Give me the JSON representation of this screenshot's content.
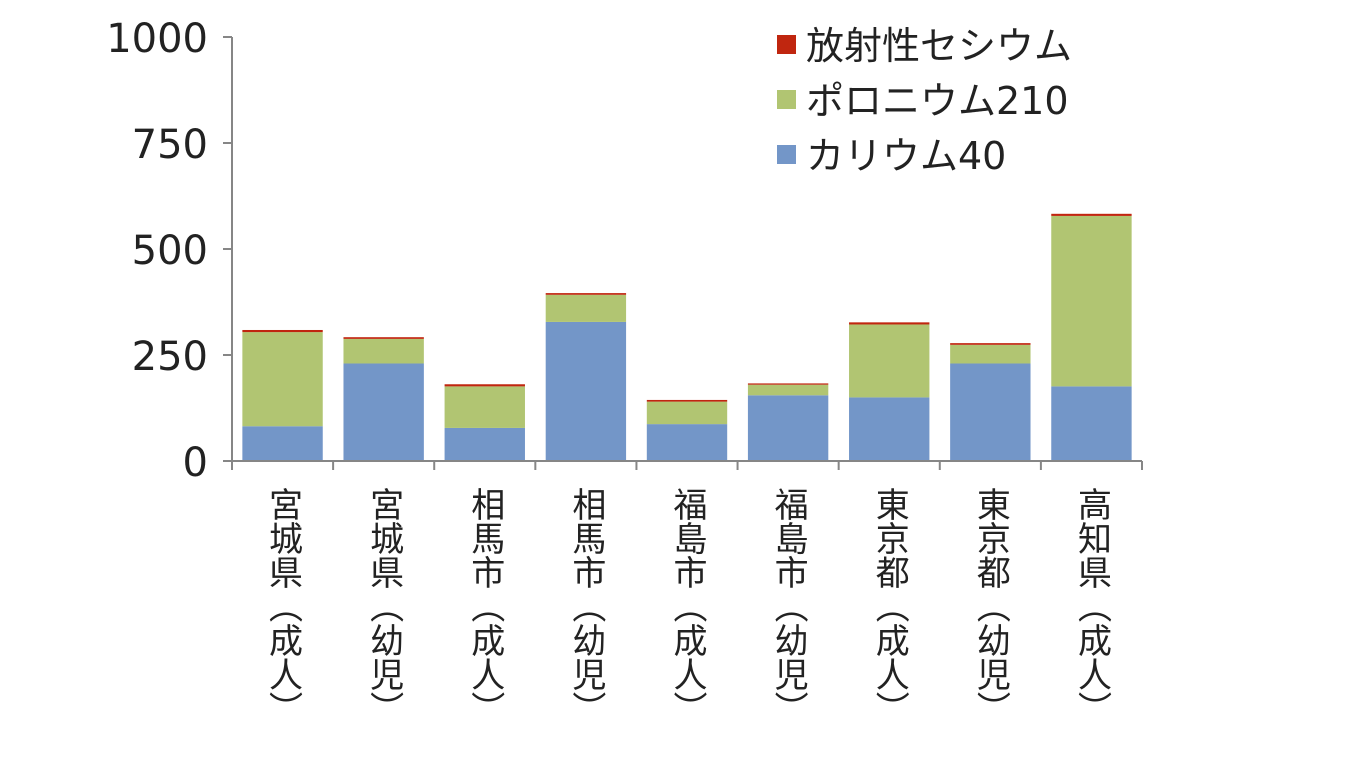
{
  "chart_data": {
    "type": "bar",
    "stacked": true,
    "title": "",
    "xlabel": "",
    "ylabel": "",
    "ylim": [
      0,
      1000
    ],
    "yticks": [
      0,
      250,
      500,
      750,
      1000
    ],
    "grid": false,
    "legend_position": "top-right",
    "categories": [
      "宮城県（成人）",
      "宮城県（幼児）",
      "相馬市（成人）",
      "相馬市（幼児）",
      "福島市（成人）",
      "福島市（幼児）",
      "東京都（成人）",
      "東京都（幼児）",
      "高知県（成人）"
    ],
    "series": [
      {
        "name": "カリウム40",
        "color": "#7396c8",
        "values": [
          82,
          230,
          78,
          328,
          87,
          155,
          150,
          230,
          176
        ]
      },
      {
        "name": "ポロニウム210",
        "color": "#b1c572",
        "values": [
          222,
          58,
          98,
          64,
          53,
          25,
          172,
          44,
          402
        ]
      },
      {
        "name": "放射性セシウム",
        "color": "#c0260f",
        "values": [
          5,
          4,
          5,
          4,
          4,
          3,
          5,
          4,
          5
        ]
      }
    ]
  }
}
